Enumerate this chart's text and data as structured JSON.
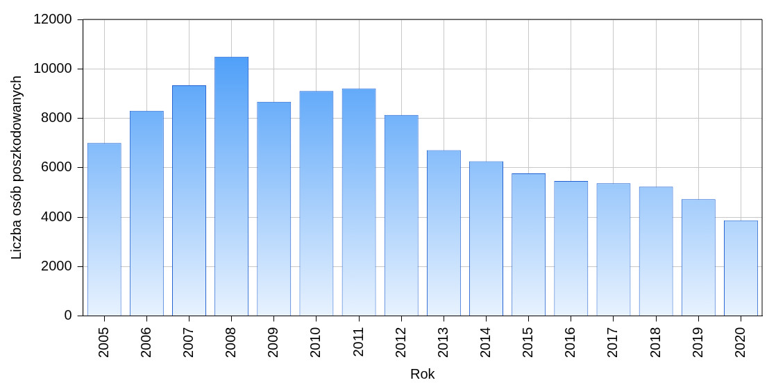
{
  "chart_data": {
    "type": "bar",
    "xlabel": "Rok",
    "ylabel": "Liczba osób poszkodowanych",
    "categories": [
      "2005",
      "2006",
      "2007",
      "2008",
      "2009",
      "2010",
      "2011",
      "2012",
      "2013",
      "2014",
      "2015",
      "2016",
      "2017",
      "2018",
      "2019",
      "2020"
    ],
    "values": [
      7000,
      8300,
      9330,
      10490,
      8670,
      9100,
      9210,
      8130,
      6710,
      6260,
      5770,
      5460,
      5370,
      5230,
      4720,
      3870
    ],
    "color": "#3a94f8",
    "ylim": [
      0,
      12000
    ],
    "yticks": [
      0,
      2000,
      4000,
      6000,
      8000,
      10000,
      12000
    ],
    "grid": true
  }
}
